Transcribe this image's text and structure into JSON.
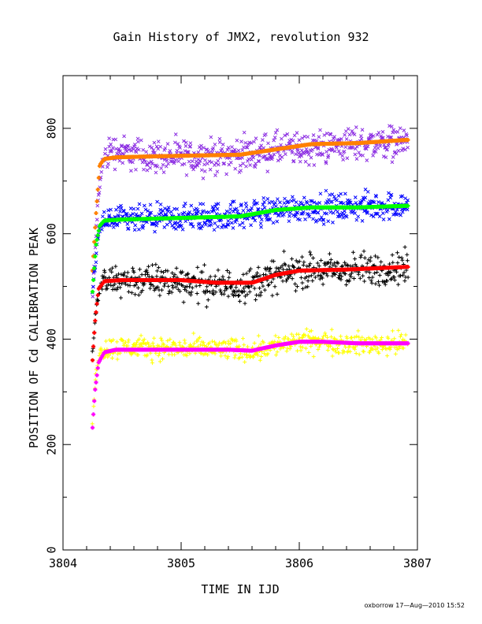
{
  "chart_data": {
    "type": "scatter",
    "title": "Gain History of JMX2, revolution 932",
    "xlabel": "TIME IN IJD",
    "ylabel": "POSITION OF Cd CALIBRATION PEAK",
    "xlim": [
      3804.0,
      3807.0
    ],
    "ylim": [
      0,
      900
    ],
    "xticks": [
      "3804",
      "3805",
      "3806",
      "3807"
    ],
    "yticks": [
      "0",
      "200",
      "400",
      "600",
      "800"
    ],
    "grid": false,
    "x_start": 3804.25,
    "x_end": 3806.92,
    "series": [
      {
        "marker": "x",
        "color": "#8a2be2",
        "scatter": 24,
        "x": [
          3804.25,
          3804.29,
          3804.33,
          3804.4,
          3804.6,
          3805.0,
          3805.5,
          3805.8,
          3806.0,
          3806.4,
          3806.9
        ],
        "y": [
          480,
          640,
          730,
          760,
          750,
          745,
          750,
          760,
          760,
          770,
          775
        ]
      },
      {
        "marker": "line",
        "color": "#ff8000",
        "x": [
          3804.25,
          3804.28,
          3804.31,
          3804.35,
          3804.45,
          3804.8,
          3805.5,
          3805.8,
          3806.1,
          3806.5,
          3806.9
        ],
        "y": [
          530,
          640,
          730,
          742,
          745,
          747,
          750,
          760,
          770,
          772,
          778
        ]
      },
      {
        "marker": "x",
        "color": "#0000ff",
        "scatter": 20,
        "x": [
          3804.25,
          3804.3,
          3804.35,
          3804.5,
          3805.0,
          3805.5,
          3805.8,
          3806.0,
          3806.4,
          3806.9
        ],
        "y": [
          490,
          600,
          625,
          625,
          630,
          635,
          645,
          650,
          650,
          655
        ]
      },
      {
        "marker": "line",
        "color": "#00ff00",
        "x": [
          3804.25,
          3804.28,
          3804.31,
          3804.35,
          3804.5,
          3805.0,
          3805.5,
          3805.8,
          3806.1,
          3806.5,
          3806.9
        ],
        "y": [
          490,
          580,
          615,
          625,
          627,
          630,
          633,
          645,
          650,
          650,
          653
        ]
      },
      {
        "marker": "+",
        "color": "#000000",
        "scatter": 24,
        "x": [
          3804.25,
          3804.28,
          3804.32,
          3804.5,
          3805.0,
          3805.3,
          3805.6,
          3805.8,
          3806.0,
          3806.4,
          3806.9
        ],
        "y": [
          370,
          460,
          505,
          512,
          510,
          500,
          505,
          520,
          530,
          530,
          535
        ]
      },
      {
        "marker": "line",
        "color": "#ff0000",
        "x": [
          3804.25,
          3804.27,
          3804.3,
          3804.35,
          3804.5,
          3805.0,
          3805.3,
          3805.6,
          3805.8,
          3806.0,
          3806.4,
          3806.9
        ],
        "y": [
          360,
          430,
          495,
          510,
          512,
          512,
          507,
          507,
          522,
          530,
          532,
          537
        ]
      },
      {
        "marker": "+",
        "color": "#ffff00",
        "scatter": 16,
        "x": [
          3804.25,
          3804.28,
          3804.32,
          3804.5,
          3805.0,
          3805.5,
          3805.6,
          3805.8,
          3806.0,
          3806.2,
          3806.5,
          3806.9
        ],
        "y": [
          240,
          340,
          380,
          385,
          382,
          380,
          378,
          388,
          395,
          395,
          390,
          392
        ]
      },
      {
        "marker": "line",
        "color": "#ff00ff",
        "x": [
          3804.25,
          3804.27,
          3804.3,
          3804.35,
          3804.45,
          3805.0,
          3805.4,
          3805.6,
          3805.8,
          3806.0,
          3806.2,
          3806.5,
          3806.9
        ],
        "y": [
          232,
          300,
          355,
          375,
          380,
          380,
          380,
          378,
          388,
          395,
          395,
          392,
          392
        ]
      }
    ]
  },
  "footer": {
    "stamp": "oxborrow 17—Aug—2010 15:52"
  }
}
